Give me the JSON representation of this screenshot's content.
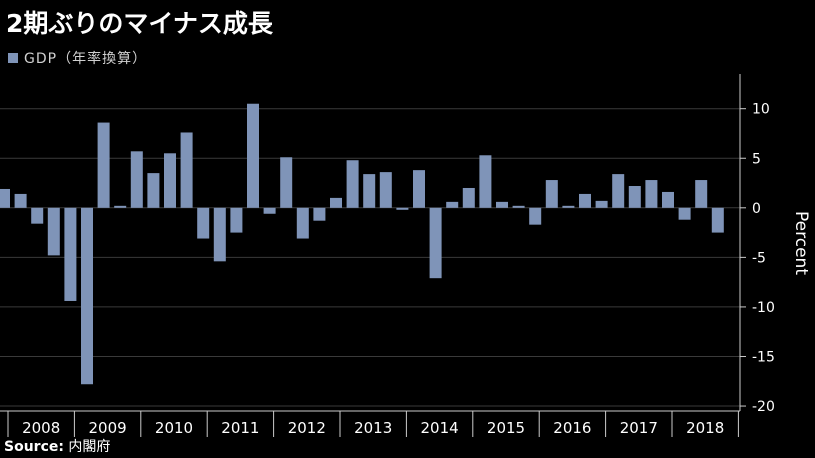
{
  "title": "2期ぶりのマイナス成長",
  "source": {
    "label": "Source:",
    "text": "内閣府"
  },
  "colors": {
    "bar": "#7f94b8",
    "grid": "#3a3a3a",
    "axis": "#cccccc",
    "background": "#000000"
  },
  "chart_data": {
    "type": "bar",
    "series": [
      {
        "name": "GDP（年率換算）",
        "values": [
          1.9,
          1.4,
          -1.6,
          -4.8,
          -9.4,
          -17.8,
          8.6,
          0.2,
          5.7,
          3.5,
          5.5,
          7.6,
          -3.1,
          -5.4,
          -2.5,
          10.5,
          -0.6,
          5.1,
          -3.1,
          -1.3,
          1.0,
          4.8,
          3.4,
          3.6,
          -0.2,
          3.8,
          -7.1,
          0.6,
          2.0,
          5.3,
          0.6,
          0.2,
          -1.7,
          2.8,
          0.2,
          1.4,
          0.7,
          3.4,
          2.2,
          2.8,
          1.6,
          -1.2,
          2.8,
          -2.5
        ]
      }
    ],
    "year_labels": [
      "2008",
      "2009",
      "2010",
      "2011",
      "2012",
      "2013",
      "2014",
      "2015",
      "2016",
      "2017",
      "2018"
    ],
    "yticks": [
      10,
      5,
      0,
      -5,
      -10,
      -15,
      -20
    ],
    "ylim": [
      -20.5,
      13.5
    ],
    "ylabel": "Percent",
    "grid": true,
    "legend_position": "top-left"
  }
}
